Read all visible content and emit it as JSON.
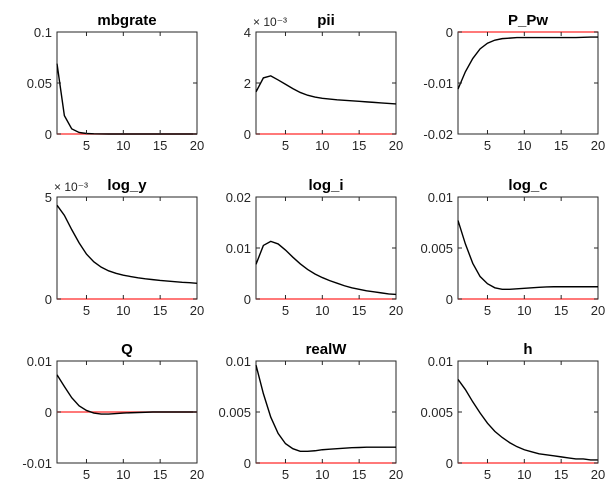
{
  "window": {
    "title": ""
  },
  "colors": {
    "series": "#000000",
    "zero_line": "#ff4d4d",
    "axes": "#262626",
    "background": "#ffffff"
  },
  "chart_data": [
    {
      "type": "line",
      "title": "mbgrate",
      "multiplier": "",
      "x": [
        1,
        2,
        3,
        4,
        5,
        6,
        7,
        8,
        9,
        10,
        11,
        12,
        13,
        14,
        15,
        16,
        17,
        18,
        19,
        20
      ],
      "xlim": [
        1,
        20
      ],
      "ylim": [
        0,
        0.1
      ],
      "xticks": [
        5,
        10,
        15,
        20
      ],
      "xtick_labels": [
        "5",
        "10",
        "15",
        "20"
      ],
      "yticks": [
        0,
        0.05,
        0.1
      ],
      "ytick_labels": [
        "0",
        "0.05",
        "0.1"
      ],
      "zero_line": 0,
      "legend": "none",
      "grid": false,
      "series": [
        {
          "values": [
            0.069,
            0.018,
            0.005,
            0.0015,
            0.0005,
            0.0002,
            0.0001,
            0,
            0,
            0,
            0,
            0,
            0,
            0,
            0,
            0,
            0,
            0,
            0,
            0
          ]
        }
      ]
    },
    {
      "type": "line",
      "title": "pii",
      "multiplier": "× 10⁻³",
      "x": [
        1,
        2,
        3,
        4,
        5,
        6,
        7,
        8,
        9,
        10,
        11,
        12,
        13,
        14,
        15,
        16,
        17,
        18,
        19,
        20
      ],
      "xlim": [
        1,
        20
      ],
      "ylim": [
        0,
        4
      ],
      "xticks": [
        5,
        10,
        15,
        20
      ],
      "xtick_labels": [
        "5",
        "10",
        "15",
        "20"
      ],
      "yticks": [
        0,
        2,
        4
      ],
      "ytick_labels": [
        "0",
        "2",
        "4"
      ],
      "zero_line": 0,
      "legend": "none",
      "grid": false,
      "series": [
        {
          "values": [
            1.65,
            2.2,
            2.28,
            2.12,
            1.95,
            1.78,
            1.63,
            1.52,
            1.45,
            1.4,
            1.37,
            1.34,
            1.32,
            1.3,
            1.28,
            1.26,
            1.24,
            1.22,
            1.2,
            1.18
          ]
        }
      ]
    },
    {
      "type": "line",
      "title": "P_Pw",
      "multiplier": "",
      "x": [
        1,
        2,
        3,
        4,
        5,
        6,
        7,
        8,
        9,
        10,
        11,
        12,
        13,
        14,
        15,
        16,
        17,
        18,
        19,
        20
      ],
      "xlim": [
        1,
        20
      ],
      "ylim": [
        -0.02,
        0
      ],
      "xticks": [
        5,
        10,
        15,
        20
      ],
      "xtick_labels": [
        "5",
        "10",
        "15",
        "20"
      ],
      "yticks": [
        -0.02,
        -0.01,
        0
      ],
      "ytick_labels": [
        "-0.02",
        "-0.01",
        "0"
      ],
      "zero_line": 0,
      "legend": "none",
      "grid": false,
      "series": [
        {
          "values": [
            -0.0112,
            -0.0078,
            -0.0052,
            -0.0033,
            -0.0022,
            -0.0016,
            -0.0013,
            -0.0012,
            -0.0011,
            -0.0011,
            -0.0011,
            -0.0011,
            -0.0011,
            -0.0011,
            -0.0011,
            -0.0011,
            -0.0011,
            -0.00105,
            -0.001,
            -0.001
          ]
        }
      ]
    },
    {
      "type": "line",
      "title": "log_y",
      "multiplier": "× 10⁻³",
      "x": [
        1,
        2,
        3,
        4,
        5,
        6,
        7,
        8,
        9,
        10,
        11,
        12,
        13,
        14,
        15,
        16,
        17,
        18,
        19,
        20
      ],
      "xlim": [
        1,
        20
      ],
      "ylim": [
        0,
        5
      ],
      "xticks": [
        5,
        10,
        15,
        20
      ],
      "xtick_labels": [
        "5",
        "10",
        "15",
        "20"
      ],
      "yticks": [
        0,
        5
      ],
      "ytick_labels": [
        "0",
        "5"
      ],
      "zero_line": 0,
      "legend": "none",
      "grid": false,
      "series": [
        {
          "values": [
            4.6,
            4.1,
            3.4,
            2.75,
            2.2,
            1.82,
            1.56,
            1.38,
            1.26,
            1.17,
            1.1,
            1.04,
            0.99,
            0.95,
            0.91,
            0.88,
            0.85,
            0.82,
            0.8,
            0.77
          ]
        }
      ]
    },
    {
      "type": "line",
      "title": "log_i",
      "multiplier": "",
      "x": [
        1,
        2,
        3,
        4,
        5,
        6,
        7,
        8,
        9,
        10,
        11,
        12,
        13,
        14,
        15,
        16,
        17,
        18,
        19,
        20
      ],
      "xlim": [
        1,
        20
      ],
      "ylim": [
        0,
        0.02
      ],
      "xticks": [
        5,
        10,
        15,
        20
      ],
      "xtick_labels": [
        "5",
        "10",
        "15",
        "20"
      ],
      "yticks": [
        0,
        0.01,
        0.02
      ],
      "ytick_labels": [
        "0",
        "0.01",
        "0.02"
      ],
      "zero_line": 0,
      "legend": "none",
      "grid": false,
      "series": [
        {
          "values": [
            0.0068,
            0.0105,
            0.0113,
            0.0108,
            0.0096,
            0.0082,
            0.0069,
            0.0058,
            0.0049,
            0.0042,
            0.0036,
            0.0031,
            0.0026,
            0.0022,
            0.0019,
            0.0016,
            0.0014,
            0.0012,
            0.001,
            0.0009
          ]
        }
      ]
    },
    {
      "type": "line",
      "title": "log_c",
      "multiplier": "",
      "x": [
        1,
        2,
        3,
        4,
        5,
        6,
        7,
        8,
        9,
        10,
        11,
        12,
        13,
        14,
        15,
        16,
        17,
        18,
        19,
        20
      ],
      "xlim": [
        1,
        20
      ],
      "ylim": [
        0,
        0.01
      ],
      "xticks": [
        5,
        10,
        15,
        20
      ],
      "xtick_labels": [
        "5",
        "10",
        "15",
        "20"
      ],
      "yticks": [
        0,
        0.005,
        0.01
      ],
      "ytick_labels": [
        "0",
        "0.005",
        "0.01"
      ],
      "zero_line": 0,
      "legend": "none",
      "grid": false,
      "series": [
        {
          "values": [
            0.0077,
            0.0054,
            0.0035,
            0.0022,
            0.0015,
            0.0011,
            0.00095,
            0.00095,
            0.001,
            0.00105,
            0.0011,
            0.00115,
            0.00118,
            0.0012,
            0.0012,
            0.0012,
            0.0012,
            0.0012,
            0.0012,
            0.0012
          ]
        }
      ]
    },
    {
      "type": "line",
      "title": "Q",
      "multiplier": "",
      "x": [
        1,
        2,
        3,
        4,
        5,
        6,
        7,
        8,
        9,
        10,
        11,
        12,
        13,
        14,
        15,
        16,
        17,
        18,
        19,
        20
      ],
      "xlim": [
        1,
        20
      ],
      "ylim": [
        -0.01,
        0.01
      ],
      "xticks": [
        5,
        10,
        15,
        20
      ],
      "xtick_labels": [
        "5",
        "10",
        "15",
        "20"
      ],
      "yticks": [
        -0.01,
        0,
        0.01
      ],
      "ytick_labels": [
        "-0.01",
        "0",
        "0.01"
      ],
      "zero_line": 0,
      "legend": "none",
      "grid": false,
      "series": [
        {
          "values": [
            0.0073,
            0.005,
            0.0028,
            0.0012,
            0.0003,
            -0.0002,
            -0.0004,
            -0.0004,
            -0.0003,
            -0.0002,
            -0.00015,
            -0.0001,
            -5e-05,
            0,
            0,
            0,
            0,
            0,
            0,
            0
          ]
        }
      ]
    },
    {
      "type": "line",
      "title": "realW",
      "multiplier": "",
      "x": [
        1,
        2,
        3,
        4,
        5,
        6,
        7,
        8,
        9,
        10,
        11,
        12,
        13,
        14,
        15,
        16,
        17,
        18,
        19,
        20
      ],
      "xlim": [
        1,
        20
      ],
      "ylim": [
        0,
        0.01
      ],
      "xticks": [
        5,
        10,
        15,
        20
      ],
      "xtick_labels": [
        "5",
        "10",
        "15",
        "20"
      ],
      "yticks": [
        0,
        0.005,
        0.01
      ],
      "ytick_labels": [
        "0",
        "0.005",
        "0.01"
      ],
      "zero_line": 0,
      "legend": "none",
      "grid": false,
      "series": [
        {
          "values": [
            0.0096,
            0.0068,
            0.0045,
            0.0029,
            0.0019,
            0.0014,
            0.00115,
            0.00115,
            0.0012,
            0.0013,
            0.00135,
            0.0014,
            0.00145,
            0.0015,
            0.00152,
            0.00155,
            0.00155,
            0.00155,
            0.00155,
            0.00155
          ]
        }
      ]
    },
    {
      "type": "line",
      "title": "h",
      "multiplier": "",
      "x": [
        1,
        2,
        3,
        4,
        5,
        6,
        7,
        8,
        9,
        10,
        11,
        12,
        13,
        14,
        15,
        16,
        17,
        18,
        19,
        20
      ],
      "xlim": [
        1,
        20
      ],
      "ylim": [
        0,
        0.01
      ],
      "xticks": [
        5,
        10,
        15,
        20
      ],
      "xtick_labels": [
        "5",
        "10",
        "15",
        "20"
      ],
      "yticks": [
        0,
        0.005,
        0.01
      ],
      "ytick_labels": [
        "0",
        "0.005",
        "0.01"
      ],
      "zero_line": 0,
      "legend": "none",
      "grid": false,
      "series": [
        {
          "values": [
            0.0082,
            0.0072,
            0.006,
            0.0049,
            0.0039,
            0.0031,
            0.0025,
            0.002,
            0.0016,
            0.0013,
            0.0011,
            0.0009,
            0.0008,
            0.0007,
            0.0006,
            0.0005,
            0.0004,
            0.0004,
            0.0003,
            0.0003
          ]
        }
      ]
    }
  ]
}
